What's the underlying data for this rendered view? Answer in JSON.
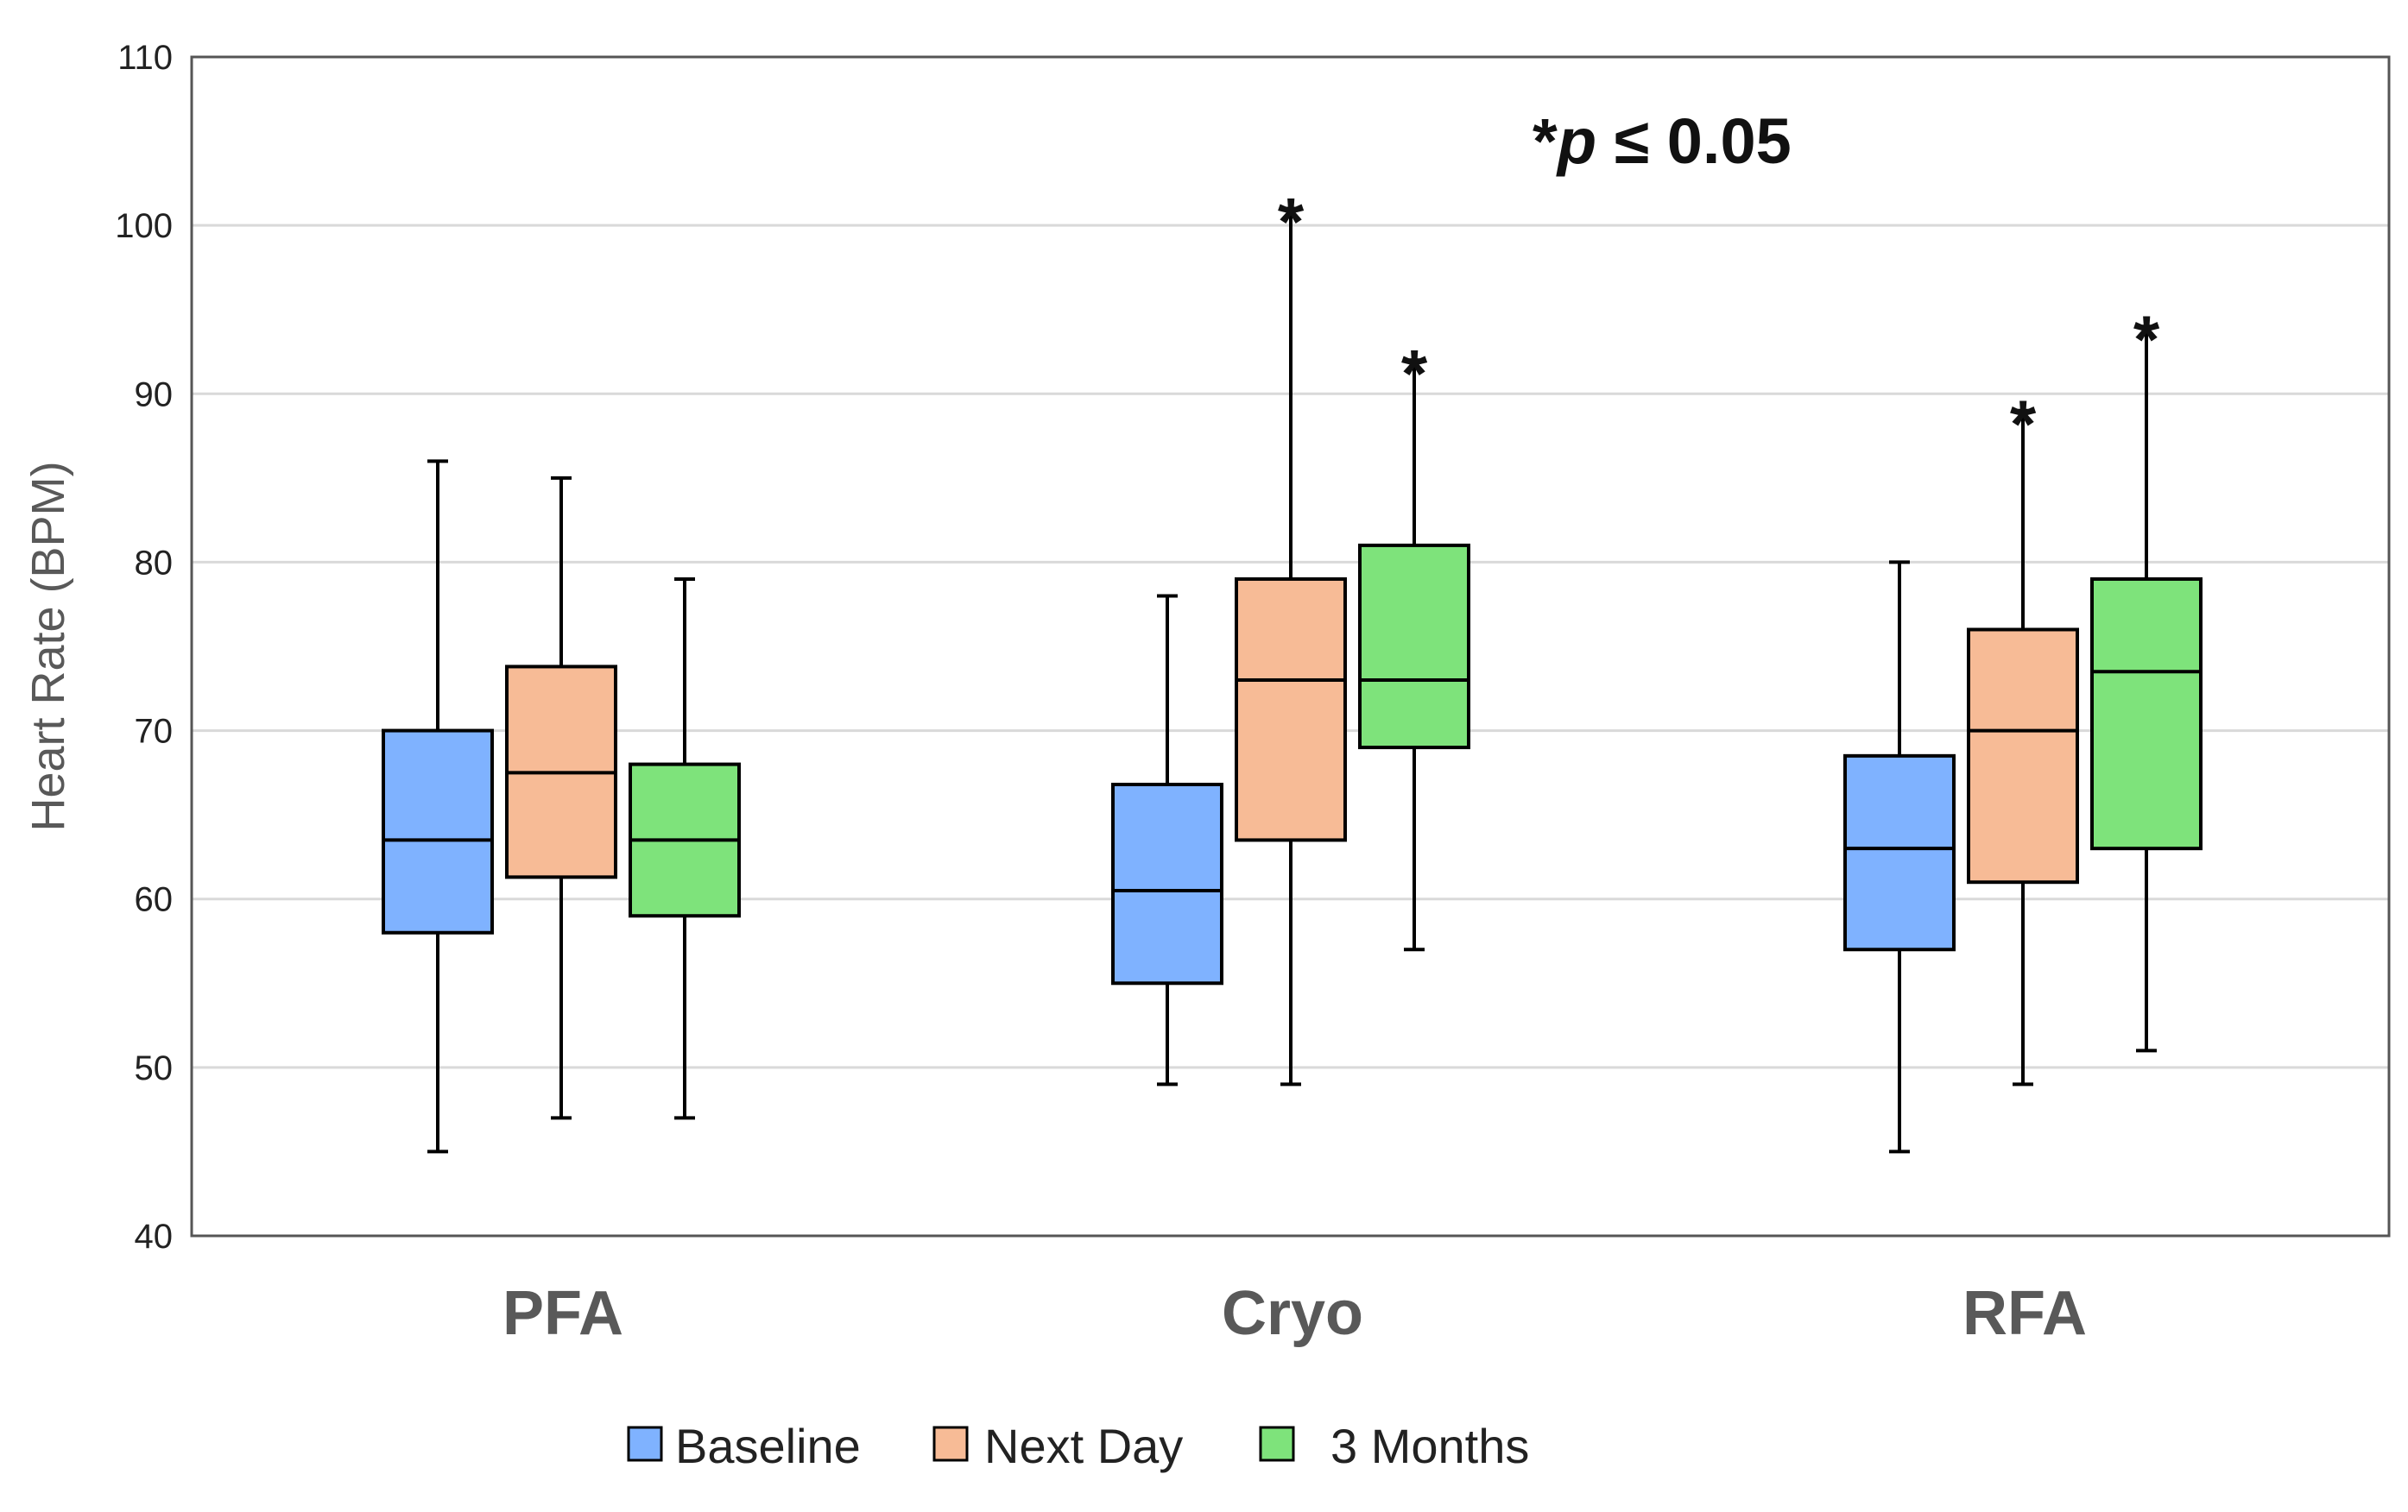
{
  "chart_data": {
    "type": "box",
    "title": "",
    "xlabel": "",
    "ylabel": "Heart Rate (BPM)",
    "ylim": [
      40,
      110
    ],
    "yticks": [
      40,
      50,
      60,
      70,
      80,
      90,
      100,
      110
    ],
    "grid": true,
    "categories": [
      "PFA",
      "Cryo",
      "RFA"
    ],
    "series": [
      {
        "name": "Baseline",
        "color": "#7fb2ff",
        "boxes": [
          {
            "min": 45,
            "q1": 58,
            "median": 63.5,
            "q3": 70,
            "max": 86,
            "significant": false
          },
          {
            "min": 49,
            "q1": 55,
            "median": 60.5,
            "q3": 66.8,
            "max": 78,
            "significant": false
          },
          {
            "min": 45,
            "q1": 57,
            "median": 63,
            "q3": 68.5,
            "max": 80,
            "significant": false
          }
        ]
      },
      {
        "name": "Next Day",
        "color": "#f7bb96",
        "boxes": [
          {
            "min": 47,
            "q1": 61.3,
            "median": 67.5,
            "q3": 73.8,
            "max": 85,
            "significant": false
          },
          {
            "min": 49,
            "q1": 63.5,
            "median": 73,
            "q3": 79,
            "max": 101,
            "significant": true
          },
          {
            "min": 49,
            "q1": 61,
            "median": 70,
            "q3": 76,
            "max": 89,
            "significant": true
          }
        ]
      },
      {
        "name": "3 Months",
        "color": "#7ee37b",
        "boxes": [
          {
            "min": 47,
            "q1": 59,
            "median": 63.5,
            "q3": 68,
            "max": 79,
            "significant": false
          },
          {
            "min": 57,
            "q1": 69,
            "median": 73,
            "q3": 81,
            "max": 92,
            "significant": true
          },
          {
            "min": 51,
            "q1": 63,
            "median": 73.5,
            "q3": 79,
            "max": 94,
            "significant": true
          }
        ]
      }
    ],
    "annotation": {
      "prefix": "*",
      "italic": "p",
      "suffix": " ≤ 0.05"
    },
    "significance_marker": "*",
    "legend": {
      "position": "bottom",
      "entries": [
        "Baseline",
        "Next Day",
        "3 Months"
      ]
    }
  }
}
